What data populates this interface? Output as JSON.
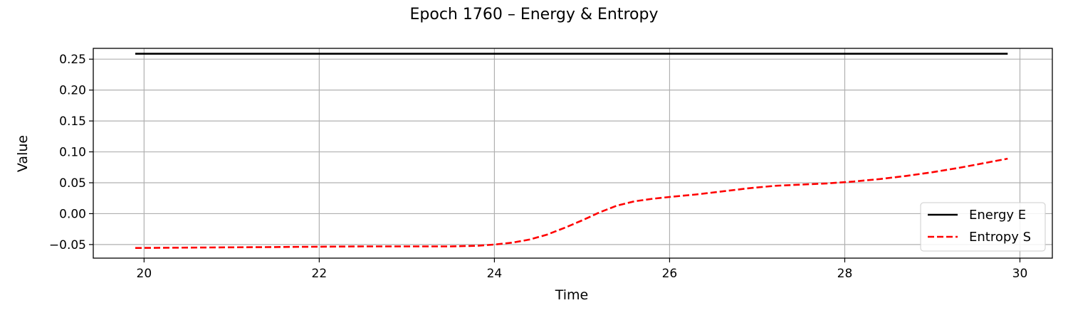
{
  "chart_data": {
    "type": "line",
    "title": "Epoch 1760 – Energy & Entropy",
    "xlabel": "Time",
    "ylabel": "Value",
    "xlim": [
      19.42,
      30.37
    ],
    "ylim": [
      -0.072,
      0.2675
    ],
    "x_ticks": [
      20,
      22,
      24,
      26,
      28,
      30
    ],
    "x_tick_labels": [
      "20",
      "22",
      "24",
      "26",
      "28",
      "30"
    ],
    "y_ticks": [
      -0.05,
      0.0,
      0.05,
      0.1,
      0.15,
      0.2,
      0.25
    ],
    "y_tick_labels": [
      "−0.05",
      "0.00",
      "0.05",
      "0.10",
      "0.15",
      "0.20",
      "0.25"
    ],
    "grid": true,
    "legend_position": "lower-right",
    "series": [
      {
        "name": "Energy E",
        "color": "#000000",
        "style": "solid",
        "x": [
          19.9,
          29.86
        ],
        "y": [
          0.2587,
          0.2587
        ]
      },
      {
        "name": "Entropy S",
        "color": "#ff0000",
        "style": "dashed",
        "x": [
          19.9,
          20.5,
          21.0,
          21.5,
          22.0,
          22.5,
          23.0,
          23.5,
          23.8,
          24.0,
          24.2,
          24.4,
          24.6,
          24.8,
          25.0,
          25.2,
          25.4,
          25.6,
          25.8,
          26.0,
          26.3,
          26.6,
          26.9,
          27.2,
          27.5,
          27.8,
          28.1,
          28.4,
          28.7,
          29.0,
          29.3,
          29.6,
          29.86
        ],
        "y": [
          -0.0555,
          -0.055,
          -0.0545,
          -0.054,
          -0.0535,
          -0.053,
          -0.053,
          -0.053,
          -0.052,
          -0.05,
          -0.047,
          -0.042,
          -0.034,
          -0.023,
          -0.011,
          0.002,
          0.013,
          0.02,
          0.024,
          0.027,
          0.031,
          0.036,
          0.041,
          0.045,
          0.047,
          0.049,
          0.052,
          0.056,
          0.061,
          0.067,
          0.074,
          0.082,
          0.089
        ]
      }
    ]
  }
}
